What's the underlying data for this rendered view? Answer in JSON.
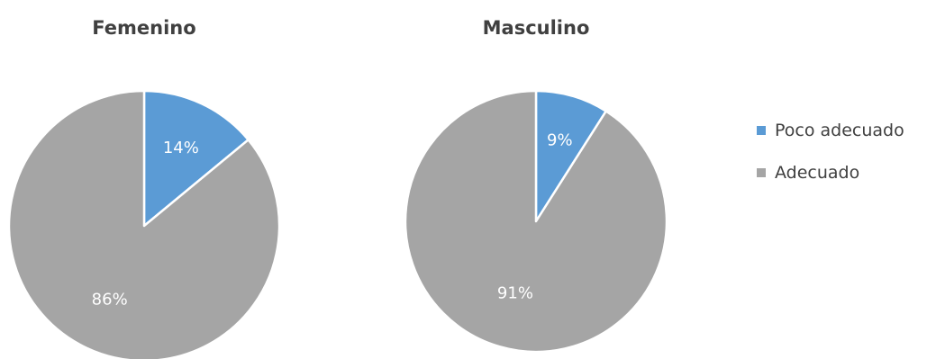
{
  "chart_data": [
    {
      "type": "pie",
      "title": "Femenino",
      "categories": [
        "Poco adecuado",
        "Adecuado"
      ],
      "values": [
        14,
        86
      ],
      "data_labels": [
        "14%",
        "86%"
      ],
      "colors": [
        "#5b9bd5",
        "#a5a5a5"
      ]
    },
    {
      "type": "pie",
      "title": "Masculino",
      "categories": [
        "Poco adecuado",
        "Adecuado"
      ],
      "values": [
        9,
        91
      ],
      "data_labels": [
        "9%",
        "91%"
      ],
      "colors": [
        "#5b9bd5",
        "#a5a5a5"
      ]
    }
  ],
  "legend": {
    "placement": "right",
    "items": [
      {
        "label": "Poco adecuado",
        "color": "#5b9bd5"
      },
      {
        "label": "Adecuado",
        "color": "#a5a5a5"
      }
    ]
  }
}
